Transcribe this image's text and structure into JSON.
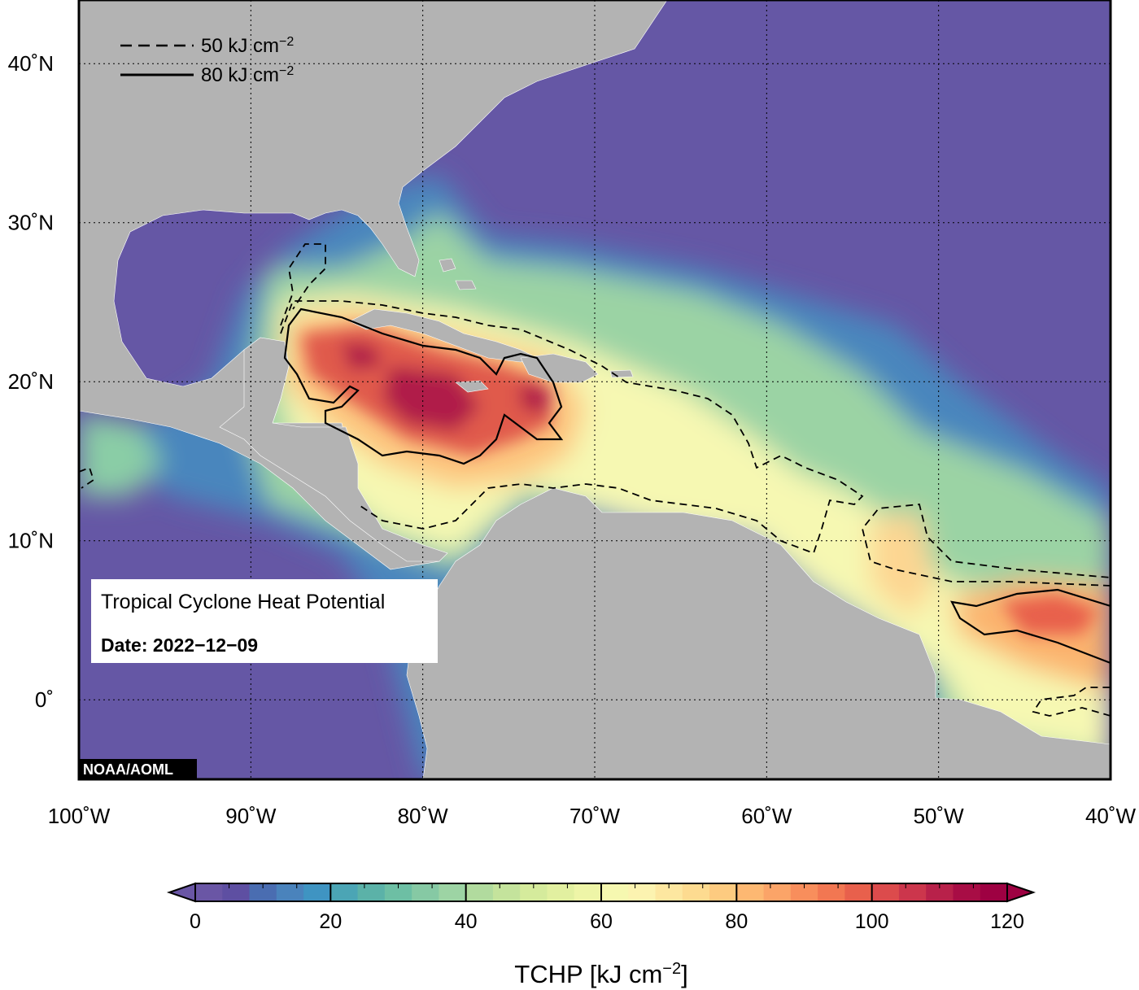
{
  "map": {
    "title": "Tropical Cyclone Heat Potential",
    "date_label": "Date: 2022−12−09",
    "credit": "NOAA/AOML",
    "extent": {
      "lon": [
        -100,
        -40
      ],
      "lat": [
        -5,
        44
      ]
    },
    "lon_ticks": [
      {
        "value": -100,
        "label": "100˚W"
      },
      {
        "value": -90,
        "label": "90˚W"
      },
      {
        "value": -80,
        "label": "80˚W"
      },
      {
        "value": -70,
        "label": "70˚W"
      },
      {
        "value": -60,
        "label": "60˚W"
      },
      {
        "value": -50,
        "label": "50˚W"
      },
      {
        "value": -40,
        "label": "40˚W"
      }
    ],
    "lat_ticks": [
      {
        "value": 40,
        "label": "40˚N"
      },
      {
        "value": 30,
        "label": "30˚N"
      },
      {
        "value": 20,
        "label": "20˚N"
      },
      {
        "value": 10,
        "label": "10˚N"
      },
      {
        "value": 0,
        "label": "0˚"
      }
    ],
    "gridlines": true,
    "land_color": "#b3b3b3",
    "ocean_base_color": "#6557a5"
  },
  "legend": {
    "placement": "top-left",
    "entries": [
      {
        "style": "dashed",
        "value": "50 kJ cm",
        "exp": "−2"
      },
      {
        "style": "solid",
        "value": "80 kJ cm",
        "exp": "−2"
      }
    ]
  },
  "colorbar": {
    "title": "TCHP [kJ cm",
    "title_exp": "−2",
    "title_close": "]",
    "min": 0,
    "max": 120,
    "ticks": [
      {
        "value": 0,
        "label": "0"
      },
      {
        "value": 20,
        "label": "20"
      },
      {
        "value": 40,
        "label": "40"
      },
      {
        "value": 60,
        "label": "60"
      },
      {
        "value": 80,
        "label": "80"
      },
      {
        "value": 100,
        "label": "100"
      },
      {
        "value": 120,
        "label": "120"
      }
    ],
    "colors": [
      "#6a56a5",
      "#5e4fa2",
      "#4a6db1",
      "#4a83bc",
      "#3f94c2",
      "#4ba5b5",
      "#5bb2a8",
      "#6dbfa4",
      "#86c9a4",
      "#9dd4a4",
      "#b1db9e",
      "#c4e39c",
      "#d5eb9c",
      "#e2f0a0",
      "#eef5a7",
      "#f6f8b0",
      "#fcf3b0",
      "#fde7a0",
      "#fddb90",
      "#fdcb80",
      "#fdb872",
      "#fba468",
      "#f88e5c",
      "#f27752",
      "#e8604c",
      "#dc4b4c",
      "#cc364c",
      "#b8214a",
      "#a80d45",
      "#9e0142"
    ]
  }
}
